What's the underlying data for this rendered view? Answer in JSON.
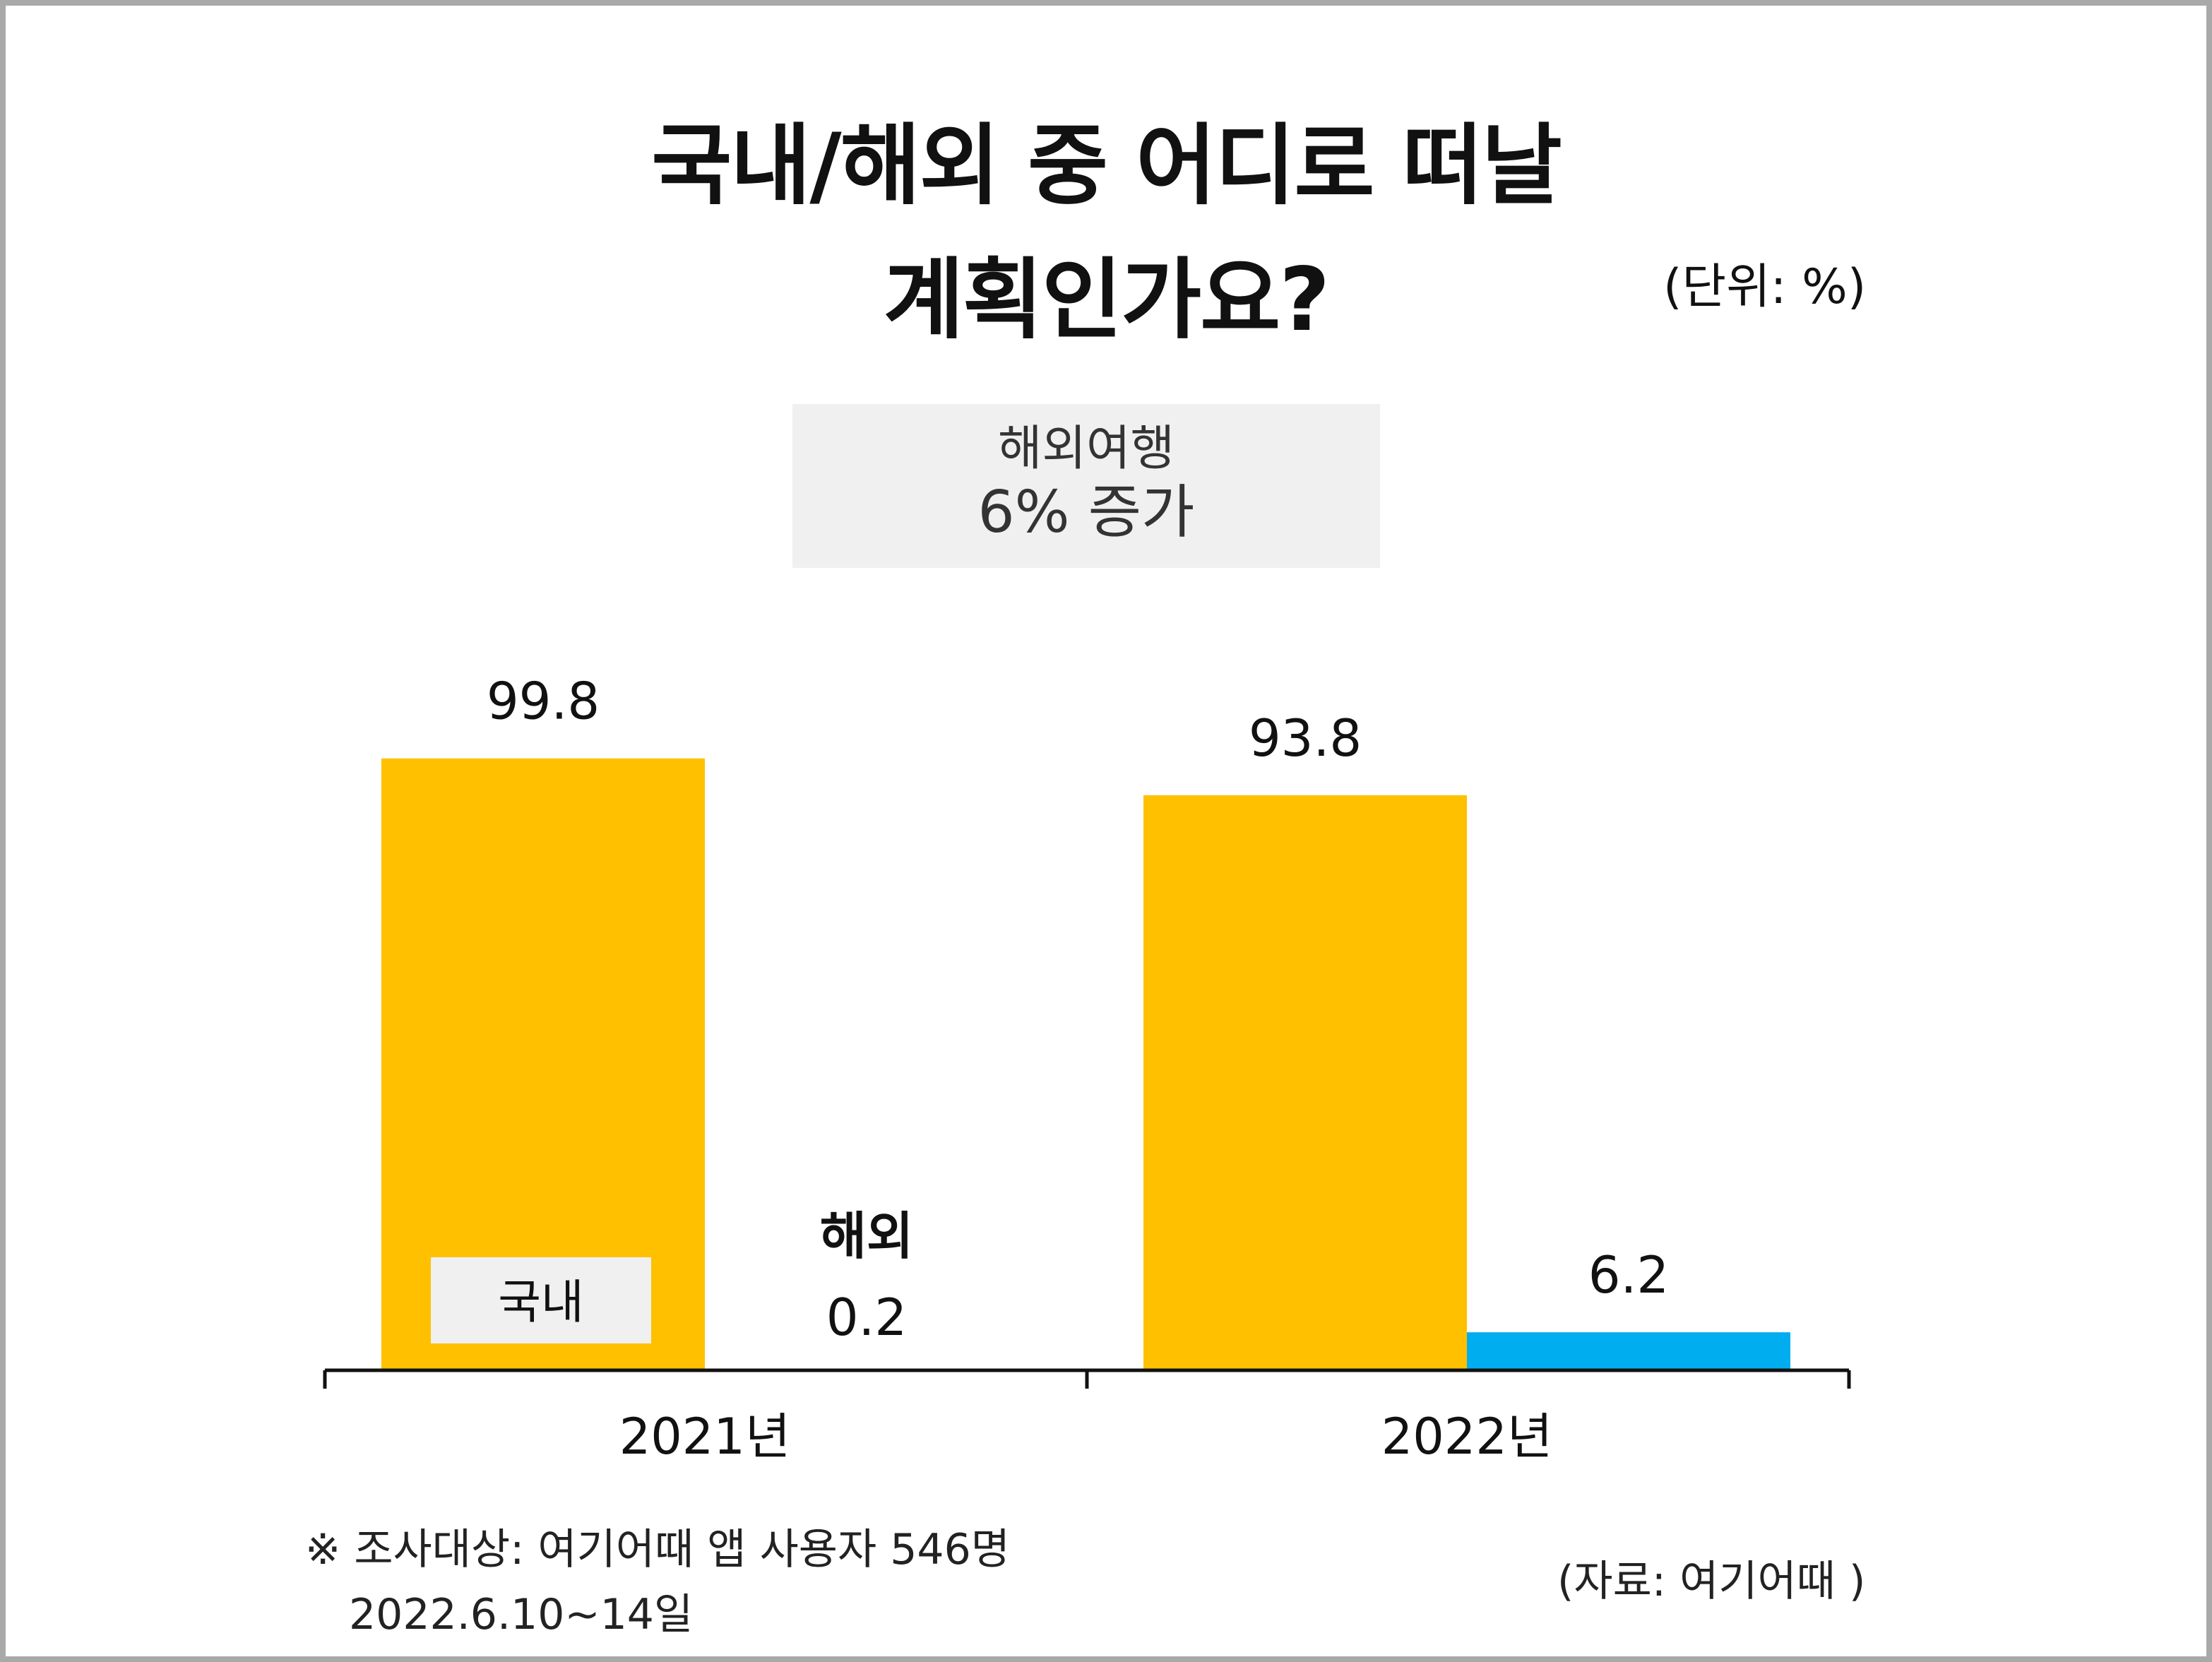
{
  "title_line1": "국내/해외 중 어디로 떠날",
  "title_line2": "계획인가요?",
  "unit_label": "(단위: %)",
  "callout": {
    "line1": "해외여행",
    "line2": "6% 증가"
  },
  "legend": {
    "domestic_label": "국내",
    "overseas_label": "해외"
  },
  "note": {
    "line1": "※ 조사대상: 여기어때 앱 사용자 546명",
    "line2": "2022.6.10~14일"
  },
  "source": "(자료: 여기어때 )",
  "colors": {
    "domestic": "#ffc000",
    "overseas": "#00adef",
    "axis": "#111111"
  },
  "chart_data": {
    "type": "bar",
    "categories": [
      "2021년",
      "2022년"
    ],
    "series": [
      {
        "name": "국내",
        "values": [
          99.8,
          93.8
        ]
      },
      {
        "name": "해외",
        "values": [
          0.2,
          6.2
        ]
      }
    ],
    "ylim": [
      0,
      100
    ]
  }
}
